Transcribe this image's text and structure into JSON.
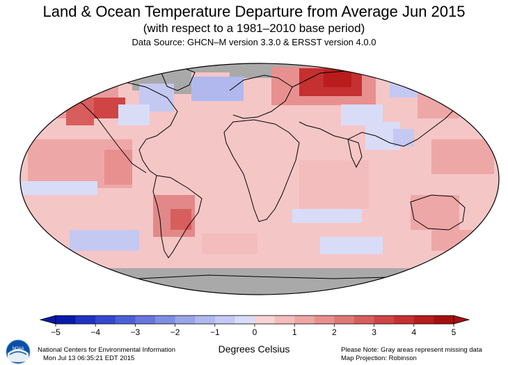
{
  "title": "Land & Ocean Temperature Departure from Average Jun 2015",
  "subtitle": "(with respect to a 1981–2010 base period)",
  "data_source": "Data Source: GHCN–M version 3.3.0 & ERSST version 4.0.0",
  "units_label": "Degrees Celsius",
  "colorbar": {
    "ticks": [
      "−5",
      "−4",
      "−3",
      "−2",
      "−1",
      "0",
      "1",
      "2",
      "3",
      "4",
      "5"
    ],
    "tick_values": [
      -5,
      -4,
      -3,
      -2,
      -1,
      0,
      1,
      2,
      3,
      4,
      5
    ],
    "range": [
      -5,
      5
    ],
    "step": 0.5,
    "colors": [
      "#0a1aa8",
      "#1e33c4",
      "#3348cf",
      "#4d5fd6",
      "#6676dc",
      "#7f8de2",
      "#9aa4e8",
      "#b1b8ee",
      "#c4c9f2",
      "#d9dcf7",
      "#f8d3d3",
      "#f3bdbd",
      "#eea7a7",
      "#e89090",
      "#e07777",
      "#d85e5e",
      "#cf4545",
      "#c53030",
      "#b91c1c",
      "#a70f0f"
    ]
  },
  "map": {
    "projection": "Robinson",
    "missing_color": "#a9a9a9",
    "ocean_fill": "#f5b8b8",
    "coastline_color": "#000000"
  },
  "footer": {
    "org_name": "National Centers for Environmental Information",
    "timestamp": "Mon Jul 13 06:35:21 EDT 2015",
    "note_line1": "Please Note: Gray areas represent missing data",
    "note_line2": "Map Projection: Robinson",
    "logo_text": "NOAA"
  }
}
